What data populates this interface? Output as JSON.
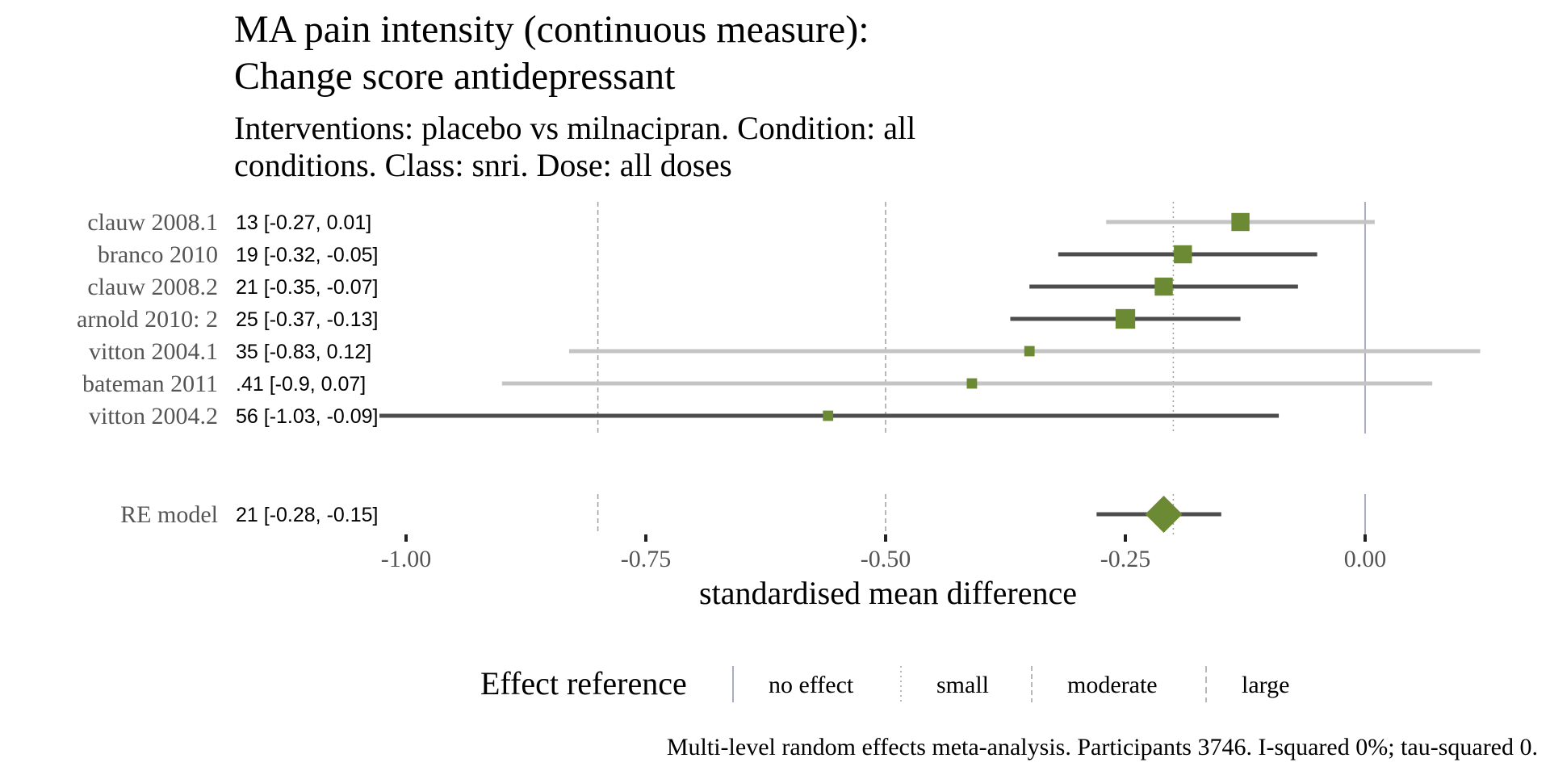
{
  "chart_data": {
    "type": "forest",
    "title_lines": [
      "MA pain intensity (continuous measure):",
      "Change score antidepressant"
    ],
    "subtitle_lines": [
      "Interventions: placebo vs milnacipran. Condition: all",
      "conditions. Class: snri. Dose: all doses"
    ],
    "xlabel": "standardised mean difference",
    "x_ticks": [
      -1.0,
      -0.75,
      -0.5,
      -0.25,
      0.0
    ],
    "x_tick_labels": [
      "-1.00",
      "-0.75",
      "-0.50",
      "-0.25",
      "0.00"
    ],
    "xlim": [
      -1.03,
      0.12
    ],
    "studies": [
      {
        "label": "clauw 2008.1",
        "estimate": -0.13,
        "lower": -0.27,
        "upper": 0.01,
        "ci_text": "13 [-0.27, 0.01]",
        "significant": false,
        "weight": 3
      },
      {
        "label": "branco 2010",
        "estimate": -0.19,
        "lower": -0.32,
        "upper": -0.05,
        "ci_text": "19 [-0.32, -0.05]",
        "significant": true,
        "weight": 3
      },
      {
        "label": "clauw 2008.2",
        "estimate": -0.21,
        "lower": -0.35,
        "upper": -0.07,
        "ci_text": "21 [-0.35, -0.07]",
        "significant": true,
        "weight": 3
      },
      {
        "label": "arnold 2010: 2",
        "estimate": -0.25,
        "lower": -0.37,
        "upper": -0.13,
        "ci_text": "25 [-0.37, -0.13]",
        "significant": true,
        "weight": 3.4
      },
      {
        "label": "vitton 2004.1",
        "estimate": -0.35,
        "lower": -0.83,
        "upper": 0.12,
        "ci_text": "35 [-0.83, 0.12]",
        "significant": false,
        "weight": 1
      },
      {
        "label": "bateman 2011",
        "estimate": -0.41,
        "lower": -0.9,
        "upper": 0.07,
        "ci_text": ".41 [-0.9, 0.07]",
        "significant": false,
        "weight": 1
      },
      {
        "label": "vitton 2004.2",
        "estimate": -0.56,
        "lower": -1.03,
        "upper": -0.09,
        "ci_text": "56 [-1.03, -0.09]",
        "significant": true,
        "weight": 1
      }
    ],
    "summary": {
      "label": "RE model",
      "estimate": -0.21,
      "lower": -0.28,
      "upper": -0.15,
      "ci_text": "21 [-0.28, -0.15]"
    },
    "reference_lines": [
      {
        "name": "no effect",
        "value": 0.0,
        "style": "solid"
      },
      {
        "name": "small",
        "value": -0.2,
        "style": "dotted"
      },
      {
        "name": "moderate",
        "value": -0.5,
        "style": "dashed"
      },
      {
        "name": "large",
        "value": -0.8,
        "style": "dashed"
      }
    ],
    "legend": {
      "title": "Effect reference",
      "items": [
        "no effect",
        "small",
        "moderate",
        "large"
      ]
    },
    "caption": "Multi-level random effects meta-analysis. Participants 3746. I-squared 0%; tau-squared 0.",
    "colors": {
      "point": "#6b8a33",
      "ci_significant": "#4d4d4d",
      "ci_nonsignificant": "#c4c4c4",
      "ref_solid": "#a8adbf",
      "ref_dashed": "#a0a0a0"
    }
  }
}
